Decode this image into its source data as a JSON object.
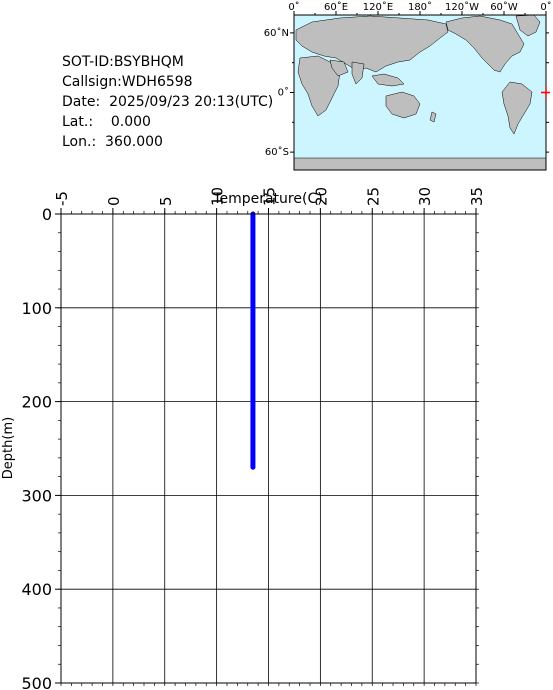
{
  "header": {
    "sot_id": "SOT-ID:BSYBHQM",
    "callsign": "Callsign:WDH6598",
    "date": "Date:  2025/09/23 20:13(UTC)",
    "lat": "Lat.:    0.000",
    "lon": "Lon.:  360.000"
  },
  "map": {
    "lon_labels": [
      "0˚",
      "60˚E",
      "120˚E",
      "180˚",
      "120˚W",
      "60˚W",
      "0˚"
    ],
    "lat_labels": [
      "60˚N",
      "0˚",
      "60˚S"
    ],
    "marker": {
      "lat": 0.0,
      "lon": 360.0
    },
    "colors": {
      "ocean": "#ccf5ff",
      "land": "#bebebe",
      "marker": "#ff0000"
    }
  },
  "chart_data": {
    "type": "line",
    "xlabel": "Temperature(C)",
    "ylabel": "Depth(m)",
    "xlim": [
      -5,
      35
    ],
    "ylim": [
      0,
      500
    ],
    "x_ticks": [
      "-5",
      "0",
      "5",
      "10",
      "15",
      "20",
      "25",
      "30",
      "35"
    ],
    "y_ticks": [
      "0",
      "100",
      "200",
      "300",
      "400",
      "500"
    ],
    "grid": true,
    "series": [
      {
        "color": "#0000ff",
        "points": [
          [
            13.5,
            0
          ],
          [
            13.5,
            50
          ],
          [
            13.5,
            100
          ],
          [
            13.5,
            150
          ],
          [
            13.5,
            200
          ],
          [
            13.5,
            250
          ],
          [
            13.5,
            270
          ]
        ]
      }
    ]
  }
}
